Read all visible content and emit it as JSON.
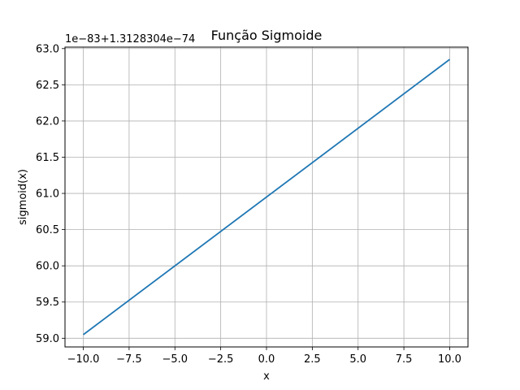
{
  "chart_data": {
    "type": "line",
    "title": "Função Sigmoide",
    "xlabel": "x",
    "ylabel": "sigmoid(x)",
    "y_offset_label": "1e−83+1.3128304e−74",
    "xlim": [
      -11,
      11
    ],
    "ylim": [
      58.88,
      63.02
    ],
    "grid": true,
    "x_ticks": [
      -10.0,
      -7.5,
      -5.0,
      -2.5,
      0.0,
      2.5,
      5.0,
      7.5,
      10.0
    ],
    "x_tick_labels": [
      "−10.0",
      "−7.5",
      "−5.0",
      "−2.5",
      "0.0",
      "2.5",
      "5.0",
      "7.5",
      "10.0"
    ],
    "y_ticks": [
      59.0,
      59.5,
      60.0,
      60.5,
      61.0,
      61.5,
      62.0,
      62.5,
      63.0
    ],
    "y_tick_labels": [
      "59.0",
      "59.5",
      "60.0",
      "60.5",
      "61.0",
      "61.5",
      "62.0",
      "62.5",
      "63.0"
    ],
    "series": [
      {
        "color": "#1f77b4",
        "x": [
          -10,
          10
        ],
        "y": [
          59.05,
          62.85
        ]
      }
    ]
  }
}
